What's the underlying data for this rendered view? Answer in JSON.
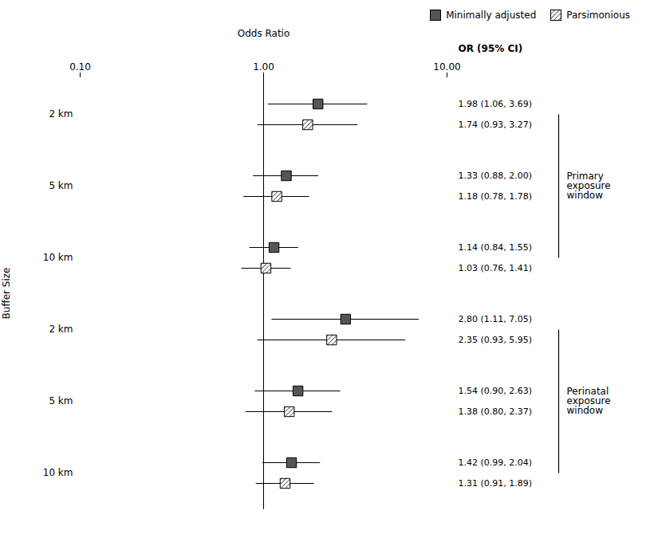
{
  "chart_data": {
    "type": "forest",
    "xlabel": "Odds Ratio",
    "ylabel": "Buffer Size",
    "ci_header": "OR (95% CI)",
    "categories": [
      "2 km",
      "5 km",
      "10 km",
      "2 km",
      "5 km",
      "10 km"
    ],
    "groups": [
      "Primary\nexposure\nwindow",
      "Primary\nexposure\nwindow",
      "Primary\nexposure\nwindow",
      "Perinatal\nexposure\nwindow",
      "Perinatal\nexposure\nwindow",
      "Perinatal\nexposure\nwindow"
    ],
    "series": [
      {
        "name": "Minimally adjusted",
        "color": "#555555",
        "marker": "square",
        "values": [
          1.98,
          1.33,
          1.14,
          2.8,
          1.54,
          1.42
        ],
        "lower": [
          1.06,
          0.88,
          0.84,
          1.11,
          0.9,
          0.99
        ],
        "upper": [
          3.69,
          2.0,
          1.55,
          7.05,
          2.63,
          2.04
        ],
        "value_labels": [
          "1.98 (1.06, 3.69)",
          "1.33 (0.88, 2.00)",
          "1.14 (0.84, 1.55)",
          "2.80 (1.11, 7.05)",
          "1.54 (0.90, 2.63)",
          "1.42 (0.99, 2.04)"
        ]
      },
      {
        "name": "Parsimonious",
        "color": "#ffffff",
        "marker": "square",
        "values": [
          1.74,
          1.18,
          1.03,
          2.35,
          1.38,
          1.31
        ],
        "lower": [
          0.93,
          0.78,
          0.76,
          0.93,
          0.8,
          0.91
        ],
        "upper": [
          3.27,
          1.78,
          1.41,
          5.95,
          2.37,
          1.89
        ],
        "value_labels": [
          "1.74 (0.93, 3.27)",
          "1.18 (0.78, 1.78)",
          "1.03 (0.76, 1.41)",
          "2.35 (0.93, 5.95)",
          "1.38 (0.80, 2.37)",
          "1.31 (0.91, 1.89)"
        ]
      }
    ],
    "xlim": [
      0.1,
      10
    ],
    "xticks": [
      {
        "value": 0.1,
        "label": "0.10"
      },
      {
        "value": 1,
        "label": "1.00"
      },
      {
        "value": 10,
        "label": "10.00"
      }
    ],
    "log": "x",
    "reference_line": 1,
    "legend": "upper right",
    "grid": false,
    "data_labels": true
  }
}
